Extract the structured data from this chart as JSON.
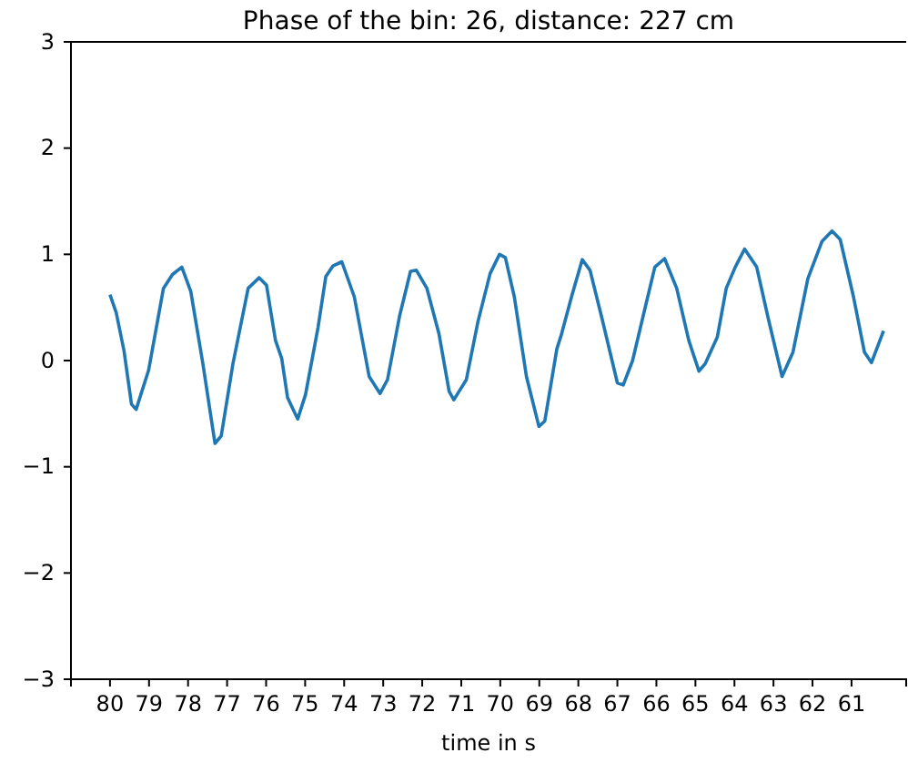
{
  "chart_data": {
    "type": "line",
    "title": "Phase of the bin: 26, distance: 227 cm",
    "xlabel": "time in s",
    "x": [
      80.0,
      79.84,
      79.64,
      79.45,
      79.33,
      79.01,
      78.63,
      78.4,
      78.16,
      77.93,
      77.62,
      77.31,
      77.15,
      76.85,
      76.46,
      76.18,
      75.99,
      75.76,
      75.6,
      75.45,
      75.19,
      74.99,
      74.67,
      74.47,
      74.29,
      74.06,
      73.74,
      73.36,
      73.08,
      72.89,
      72.58,
      72.3,
      72.15,
      71.88,
      71.57,
      71.31,
      71.19,
      70.87,
      70.57,
      70.26,
      70.02,
      69.87,
      69.64,
      69.33,
      69.01,
      68.86,
      68.55,
      68.43,
      68.16,
      67.9,
      67.7,
      67.39,
      67.0,
      66.85,
      66.61,
      66.3,
      66.04,
      65.79,
      65.48,
      65.17,
      64.91,
      64.75,
      64.44,
      64.21,
      63.98,
      63.74,
      63.43,
      63.13,
      62.78,
      62.5,
      62.12,
      61.76,
      61.5,
      61.29,
      60.95,
      60.67,
      60.49,
      60.18
    ],
    "series": [
      {
        "color": "#1f77b4",
        "values": [
          0.62,
          0.45,
          0.09,
          -0.41,
          -0.46,
          -0.09,
          0.68,
          0.81,
          0.88,
          0.65,
          -0.03,
          -0.78,
          -0.71,
          -0.03,
          0.68,
          0.78,
          0.71,
          0.19,
          0.02,
          -0.35,
          -0.55,
          -0.32,
          0.31,
          0.79,
          0.89,
          0.93,
          0.6,
          -0.15,
          -0.31,
          -0.18,
          0.42,
          0.84,
          0.85,
          0.68,
          0.25,
          -0.29,
          -0.37,
          -0.18,
          0.37,
          0.82,
          1.0,
          0.97,
          0.6,
          -0.15,
          -0.62,
          -0.57,
          0.11,
          0.25,
          0.62,
          0.95,
          0.85,
          0.39,
          -0.21,
          -0.23,
          0.0,
          0.48,
          0.88,
          0.96,
          0.68,
          0.19,
          -0.1,
          -0.03,
          0.22,
          0.68,
          0.88,
          1.05,
          0.88,
          0.39,
          -0.15,
          0.08,
          0.77,
          1.12,
          1.22,
          1.14,
          0.6,
          0.08,
          -0.02,
          0.28
        ]
      }
    ],
    "xlim": [
      81.0,
      59.6
    ],
    "xticks": [
      80,
      79,
      78,
      77,
      76,
      75,
      74,
      73,
      72,
      71,
      70,
      69,
      68,
      67,
      66,
      65,
      64,
      63,
      62,
      61
    ],
    "ylim": [
      -3,
      3
    ],
    "yticks": [
      -3,
      -2,
      -1,
      0,
      1,
      2,
      3
    ],
    "line_style": "solid",
    "marker": "none"
  }
}
